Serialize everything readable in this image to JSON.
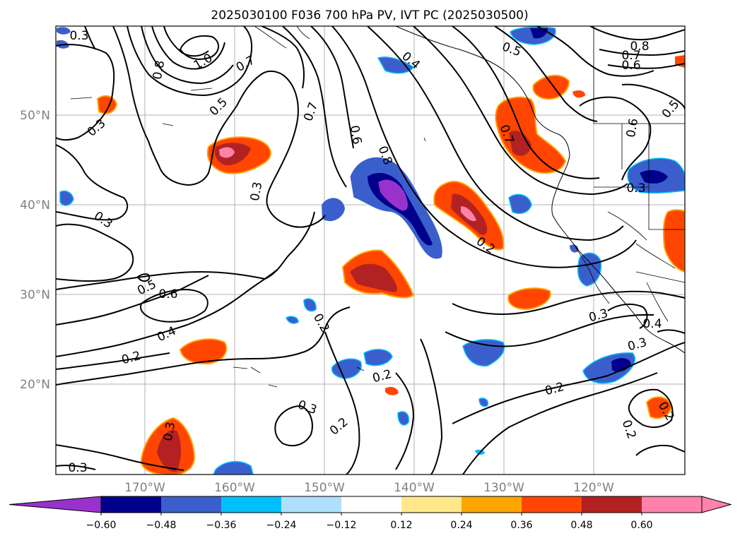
{
  "title": "2025030100 F036 700 hPa PV, IVT PC (2025030500)",
  "map": {
    "lon_labels": [
      "170°W",
      "160°W",
      "150°W",
      "140°W",
      "130°W",
      "120°W"
    ],
    "lat_labels": [
      "50°N",
      "40°N",
      "30°N",
      "20°N"
    ],
    "contour_labels": [
      "0.8",
      "1.0",
      "0.7",
      "0.5",
      "0.4",
      "0.7",
      "0.6",
      "0.8",
      "0.5",
      "0.7",
      "0.6",
      "0.8",
      "0.7",
      "0.6",
      "0.5",
      "0.3",
      "0.3",
      "0.3",
      "0.2",
      "0.5",
      "0.6",
      "0.4",
      "0.2",
      "0.2",
      "0.2",
      "0.3",
      "0.2",
      "0.2",
      "0.3",
      "0.3",
      "0.4",
      "0.3",
      "0.2",
      "0.2",
      "0.3",
      "0.3",
      "0.3"
    ],
    "fill_colors": {
      "strong_negative": "#9932cc",
      "negative_1": "#00008b",
      "negative_2": "#3a5fcd",
      "negative_3": "#00bfff",
      "positive_1": "#ffa500",
      "positive_2": "#ff4500",
      "positive_3": "#b22222",
      "strong_positive": "#ff82ab"
    }
  },
  "colorbar": {
    "ticks": [
      "−0.60",
      "−0.48",
      "−0.36",
      "−0.24",
      "−0.12",
      "0.12",
      "0.24",
      "0.36",
      "0.48",
      "0.60"
    ],
    "colors": [
      "#9932cc",
      "#00008b",
      "#3a5fcd",
      "#00bfff",
      "#afe0fb",
      "#ffffff",
      "#ffe88a",
      "#ffa500",
      "#ff4500",
      "#b22222",
      "#ff82ab",
      "#ff82ab"
    ]
  }
}
